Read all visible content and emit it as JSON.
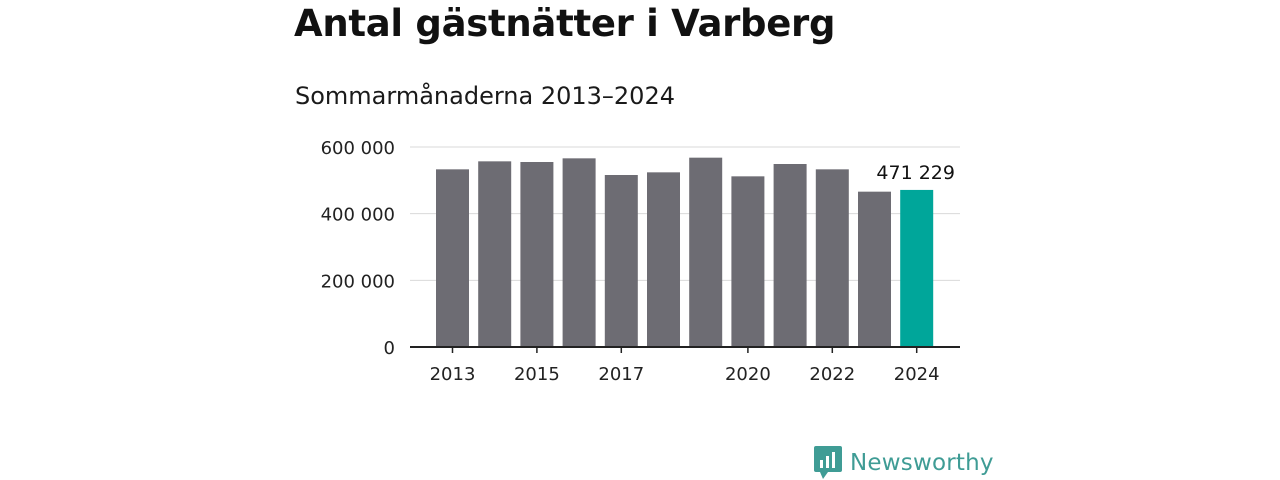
{
  "title": "Antal gästnätter i Varberg",
  "subtitle": "Sommarmånaderna 2013–2024",
  "brand": "Newsworthy",
  "colors": {
    "bar": "#6d6c73",
    "highlight": "#00a69a",
    "grid": "#d9d9d9",
    "axis": "#222222"
  },
  "chart_data": {
    "type": "bar",
    "categories": [
      "2013",
      "2014",
      "2015",
      "2016",
      "2017",
      "2018",
      "2019",
      "2020",
      "2021",
      "2022",
      "2023",
      "2024"
    ],
    "values": [
      533000,
      557000,
      555000,
      566000,
      516000,
      524000,
      568000,
      512000,
      549000,
      533000,
      466000,
      471229
    ],
    "tick_labels_x": [
      "2013",
      "",
      "2015",
      "",
      "2017",
      "",
      "",
      "2020",
      "",
      "2022",
      "",
      "2024"
    ],
    "y_ticks": [
      0,
      200000,
      400000,
      600000
    ],
    "y_tick_labels": [
      "0",
      "200 000",
      "400 000",
      "600 000"
    ],
    "ylim": [
      0,
      600000
    ],
    "highlight_index": 11,
    "highlight_label": "471 229",
    "grid": true
  }
}
